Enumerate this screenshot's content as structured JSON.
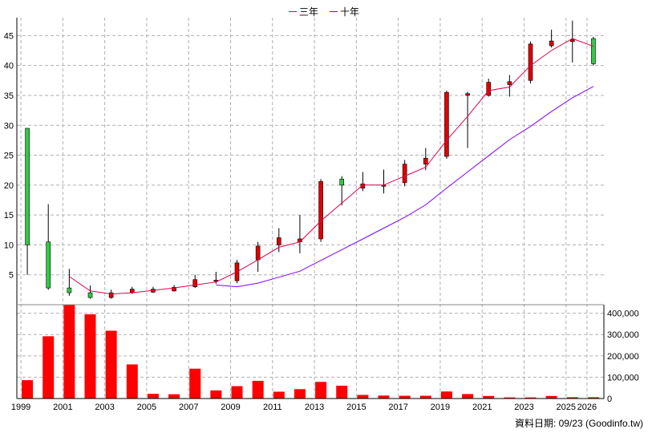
{
  "legend": [
    {
      "name": "三年",
      "color": "#e0004a"
    },
    {
      "name": "十年",
      "color": "#8000ff"
    }
  ],
  "footer": {
    "note": "資料日期: 09/23  (Goodinfo.tw)"
  },
  "colors": {
    "up": "#e00000",
    "down": "#2ecc40",
    "volume": "#ff0000",
    "grid": "#b0b0b0"
  },
  "chart_data": {
    "type": "candlestick+line+bar",
    "price_axis": {
      "ticks": [
        5,
        10,
        15,
        20,
        25,
        30,
        35,
        40,
        45
      ],
      "ylim": [
        0,
        48
      ]
    },
    "volume_axis": {
      "ticks": [
        0,
        100000,
        200000,
        300000,
        400000
      ],
      "tick_labels": [
        "0",
        "100,000",
        "200,000",
        "300,000",
        "400,000"
      ],
      "ylim": [
        0,
        440000
      ]
    },
    "x_tick_labels": [
      "1999",
      "2001",
      "2003",
      "2005",
      "2007",
      "2009",
      "2011",
      "2013",
      "2015",
      "2017",
      "2019",
      "2021",
      "2023",
      "2025",
      "2026"
    ],
    "years": [
      1999,
      2000,
      2001,
      2002,
      2003,
      2004,
      2005,
      2006,
      2007,
      2008,
      2009,
      2010,
      2011,
      2012,
      2013,
      2014,
      2015,
      2016,
      2017,
      2018,
      2019,
      2020,
      2021,
      2022,
      2023,
      2024,
      2025,
      2026
    ],
    "candles": [
      {
        "o": 29.5,
        "c": 10.0,
        "h": 29.5,
        "l": 5.0
      },
      {
        "o": 10.5,
        "c": 2.8,
        "h": 16.8,
        "l": 2.5
      },
      {
        "o": 2.8,
        "c": 2.0,
        "h": 6.0,
        "l": 1.5
      },
      {
        "o": 2.0,
        "c": 1.2,
        "h": 3.2,
        "l": 1.0
      },
      {
        "o": 1.2,
        "c": 2.0,
        "h": 2.5,
        "l": 1.0
      },
      {
        "o": 2.0,
        "c": 2.6,
        "h": 3.0,
        "l": 1.8
      },
      {
        "o": 2.1,
        "c": 2.6,
        "h": 3.0,
        "l": 2.0
      },
      {
        "o": 2.3,
        "c": 2.9,
        "h": 3.3,
        "l": 2.2
      },
      {
        "o": 3.0,
        "c": 4.2,
        "h": 5.0,
        "l": 2.8
      },
      {
        "o": 3.9,
        "c": 4.1,
        "h": 5.5,
        "l": 3.5
      },
      {
        "o": 4.0,
        "c": 7.0,
        "h": 7.5,
        "l": 3.6
      },
      {
        "o": 7.5,
        "c": 9.8,
        "h": 10.5,
        "l": 5.5
      },
      {
        "o": 10.0,
        "c": 11.2,
        "h": 12.8,
        "l": 8.8
      },
      {
        "o": 10.5,
        "c": 11.0,
        "h": 15.0,
        "l": 8.6
      },
      {
        "o": 11.0,
        "c": 20.6,
        "h": 21.0,
        "l": 10.5
      },
      {
        "o": 21.0,
        "c": 20.0,
        "h": 21.5,
        "l": 16.6
      },
      {
        "o": 19.5,
        "c": 20.2,
        "h": 22.2,
        "l": 19.0
      },
      {
        "o": 19.8,
        "c": 20.0,
        "h": 22.6,
        "l": 18.6
      },
      {
        "o": 20.4,
        "c": 23.5,
        "h": 24.2,
        "l": 19.8
      },
      {
        "o": 23.5,
        "c": 24.5,
        "h": 26.2,
        "l": 22.5
      },
      {
        "o": 24.8,
        "c": 35.5,
        "h": 35.8,
        "l": 24.4
      },
      {
        "o": 35.0,
        "c": 35.3,
        "h": 35.6,
        "l": 26.2
      },
      {
        "o": 35.0,
        "c": 37.2,
        "h": 37.8,
        "l": 34.8
      },
      {
        "o": 36.8,
        "c": 37.3,
        "h": 38.4,
        "l": 34.8
      },
      {
        "o": 37.5,
        "c": 43.6,
        "h": 44.0,
        "l": 37.0
      },
      {
        "o": 43.3,
        "c": 44.1,
        "h": 46.0,
        "l": 43.0
      },
      {
        "o": 44.0,
        "c": 44.3,
        "h": 47.5,
        "l": 40.5
      },
      {
        "o": 44.5,
        "c": 40.3,
        "h": 44.8,
        "l": 40.0
      }
    ],
    "series": [
      {
        "name": "三年",
        "values": [
          null,
          null,
          4.7,
          2.3,
          1.8,
          2.0,
          2.4,
          2.8,
          3.3,
          3.8,
          5.5,
          7.5,
          9.6,
          10.5,
          14.0,
          17.0,
          20.0,
          20.0,
          21.5,
          23.0,
          27.5,
          31.5,
          35.8,
          36.4,
          40.0,
          42.5,
          44.5,
          43.2
        ]
      },
      {
        "name": "十年",
        "values": [
          null,
          null,
          null,
          null,
          null,
          null,
          null,
          null,
          null,
          3.3,
          3.0,
          3.6,
          4.6,
          5.6,
          7.4,
          9.2,
          11.0,
          12.8,
          14.6,
          16.7,
          19.5,
          22.2,
          24.9,
          27.6,
          29.8,
          32.3,
          34.6,
          36.5
        ]
      }
    ],
    "volume": [
      86000,
      292000,
      450000,
      395000,
      318000,
      160000,
      22000,
      20000,
      140000,
      38000,
      58000,
      83000,
      32000,
      44000,
      78000,
      60000,
      17000,
      14000,
      13000,
      13000,
      33000,
      21000,
      12000,
      5000,
      5000,
      12000,
      6000,
      6000
    ]
  }
}
